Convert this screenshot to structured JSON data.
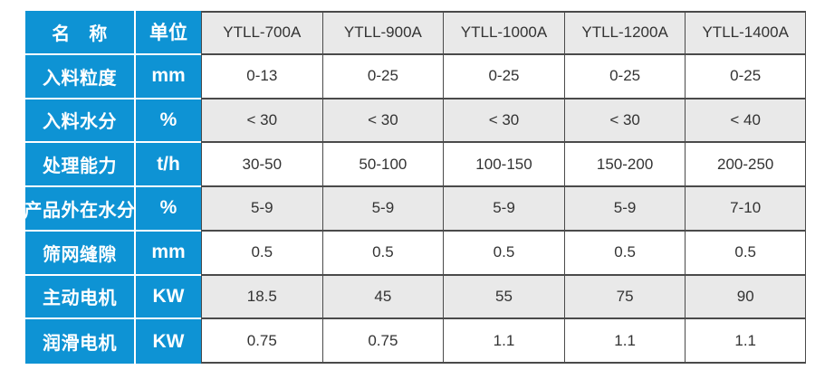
{
  "colors": {
    "blue": "#0e93d4",
    "row_alt_gray": "#e9e9e9",
    "row_white": "#ffffff",
    "grid_border": "#4a4a4a",
    "data_text": "#333333",
    "label_text": "#ffffff"
  },
  "table": {
    "label_header": "名　称",
    "unit_header": "单位",
    "models": [
      "YTLL-700A",
      "YTLL-900A",
      "YTLL-1000A",
      "YTLL-1200A",
      "YTLL-1400A"
    ],
    "rows": [
      {
        "label": "入料粒度",
        "unit": "mm",
        "values": [
          "0-13",
          "0-25",
          "0-25",
          "0-25",
          "0-25"
        ]
      },
      {
        "label": "入料水分",
        "unit": "%",
        "values": [
          "< 30",
          "< 30",
          "< 30",
          "< 30",
          "< 40"
        ]
      },
      {
        "label": "处理能力",
        "unit": "t/h",
        "values": [
          "30-50",
          "50-100",
          "100-150",
          "150-200",
          "200-250"
        ]
      },
      {
        "label": "产品外在水分",
        "unit": "%",
        "values": [
          "5-9",
          "5-9",
          "5-9",
          "5-9",
          "7-10"
        ]
      },
      {
        "label": "筛网缝隙",
        "unit": "mm",
        "values": [
          "0.5",
          "0.5",
          "0.5",
          "0.5",
          "0.5"
        ]
      },
      {
        "label": "主动电机",
        "unit": "KW",
        "values": [
          "18.5",
          "45",
          "55",
          "75",
          "90"
        ]
      },
      {
        "label": "润滑电机",
        "unit": "KW",
        "values": [
          "0.75",
          "0.75",
          "1.1",
          "1.1",
          "1.1"
        ]
      }
    ]
  },
  "chart_data": {
    "type": "table",
    "title": "",
    "columns": [
      "名　称",
      "单位",
      "YTLL-700A",
      "YTLL-900A",
      "YTLL-1000A",
      "YTLL-1200A",
      "YTLL-1400A"
    ],
    "rows": [
      [
        "入料粒度",
        "mm",
        "0-13",
        "0-25",
        "0-25",
        "0-25",
        "0-25"
      ],
      [
        "入料水分",
        "%",
        "< 30",
        "< 30",
        "< 30",
        "< 30",
        "< 40"
      ],
      [
        "处理能力",
        "t/h",
        "30-50",
        "50-100",
        "100-150",
        "150-200",
        "200-250"
      ],
      [
        "产品外在水分",
        "%",
        "5-9",
        "5-9",
        "5-9",
        "5-9",
        "7-10"
      ],
      [
        "筛网缝隙",
        "mm",
        "0.5",
        "0.5",
        "0.5",
        "0.5",
        "0.5"
      ],
      [
        "主动电机",
        "KW",
        "18.5",
        "45",
        "55",
        "75",
        "90"
      ],
      [
        "润滑电机",
        "KW",
        "0.75",
        "0.75",
        "1.1",
        "1.1",
        "1.1"
      ]
    ]
  }
}
